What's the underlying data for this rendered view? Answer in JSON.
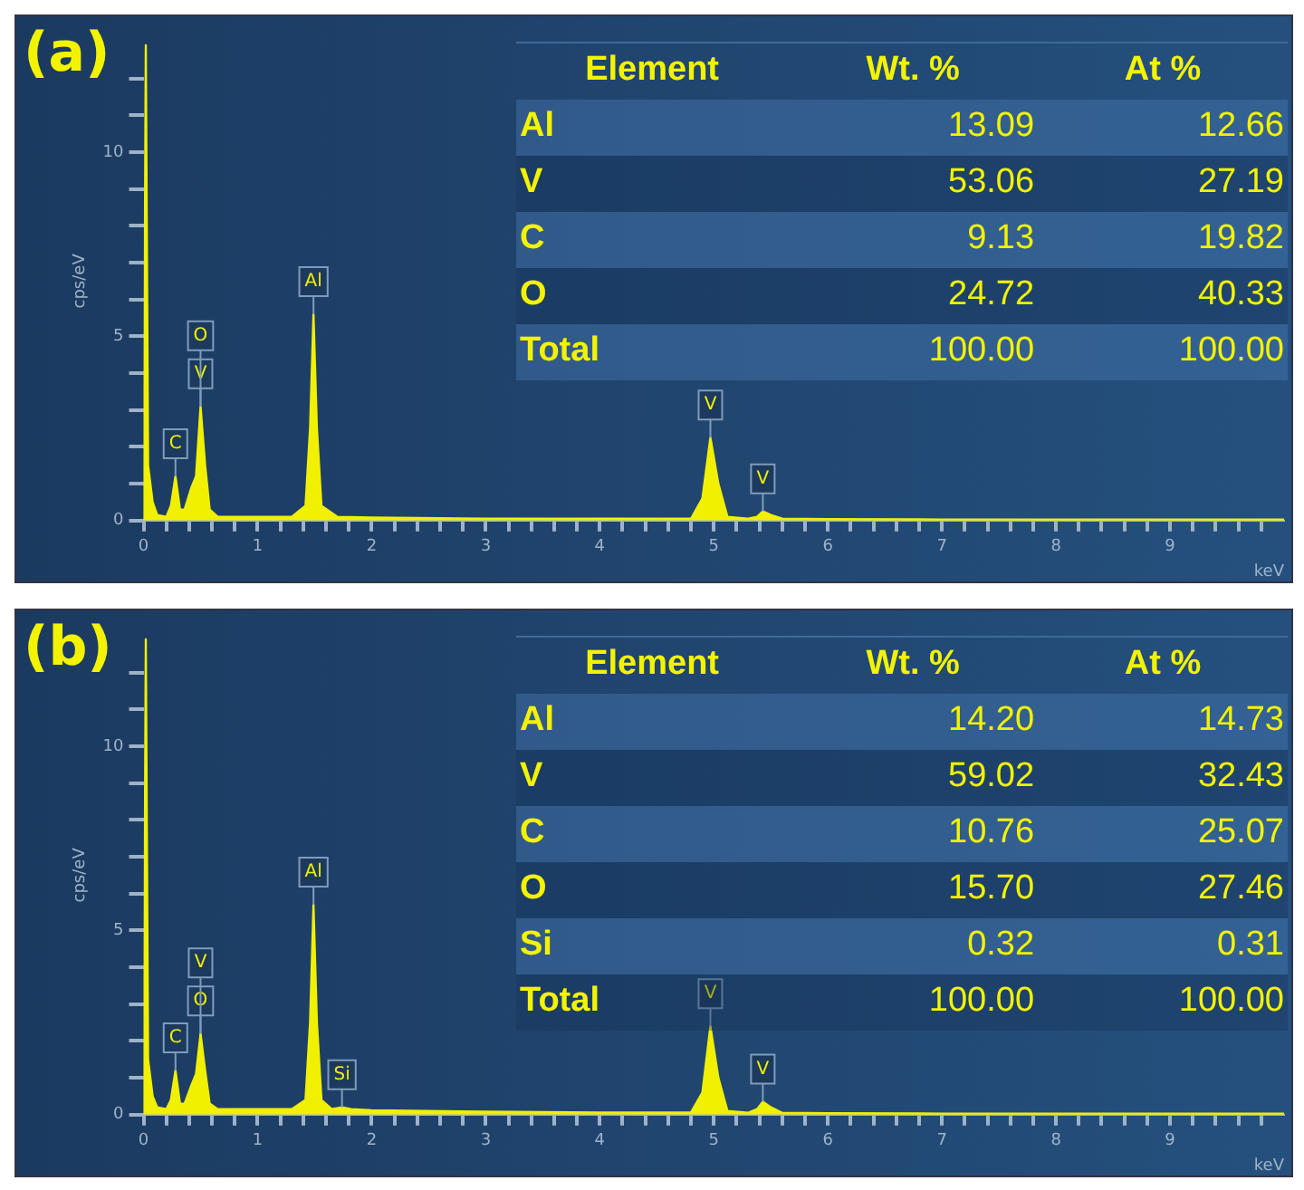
{
  "chart_data": [
    {
      "type": "area",
      "xlabel": "keV",
      "ylabel": "cps/eV",
      "xlim": [
        0,
        10
      ],
      "ylim": [
        0,
        13
      ],
      "xticks": [
        0,
        {
          "value": 0.2,
          "label": null
        },
        {
          "value": 0.4,
          "label": null
        },
        {
          "value": 0.6,
          "label": null
        },
        {
          "value": 0.8,
          "label": null
        },
        1,
        {
          "value": 1.2,
          "label": null
        },
        {
          "value": 1.4,
          "label": null
        },
        {
          "value": 1.6,
          "label": null
        },
        {
          "value": 1.8,
          "label": null
        },
        2,
        {
          "value": 2.2,
          "label": null
        },
        {
          "value": 2.4,
          "label": null
        },
        {
          "value": 2.6,
          "label": null
        },
        {
          "value": 2.8,
          "label": null
        },
        3,
        {
          "value": 3.2,
          "label": null
        },
        {
          "value": 3.4,
          "label": null
        },
        {
          "value": 3.6,
          "label": null
        },
        {
          "value": 3.8,
          "label": null
        },
        4,
        {
          "value": 4.2,
          "label": null
        },
        {
          "value": 4.4,
          "label": null
        },
        {
          "value": 4.6,
          "label": null
        },
        {
          "value": 4.8,
          "label": null
        },
        5,
        {
          "value": 5.2,
          "label": null
        },
        {
          "value": 5.4,
          "label": null
        },
        {
          "value": 5.6,
          "label": null
        },
        {
          "value": 5.8,
          "label": null
        },
        6,
        {
          "value": 6.2,
          "label": null
        },
        {
          "value": 6.4,
          "label": null
        },
        {
          "value": 6.6,
          "label": null
        },
        {
          "value": 6.8,
          "label": null
        },
        7,
        {
          "value": 7.2,
          "label": null
        },
        {
          "value": 7.4,
          "label": null
        },
        {
          "value": 7.6,
          "label": null
        },
        {
          "value": 7.8,
          "label": null
        },
        8,
        {
          "value": 8.2,
          "label": null
        },
        {
          "value": 8.4,
          "label": null
        },
        {
          "value": 8.6,
          "label": null
        },
        {
          "value": 8.8,
          "label": null
        },
        9,
        {
          "value": 9.2,
          "label": null
        },
        {
          "value": 9.4,
          "label": null
        },
        {
          "value": 9.6,
          "label": null
        },
        {
          "value": 9.8,
          "label": null
        }
      ],
      "yticks": [
        0,
        {
          "value": 1,
          "label": null
        },
        {
          "value": 2,
          "label": null
        },
        {
          "value": 3,
          "label": null
        },
        {
          "value": 4,
          "label": null
        },
        5,
        {
          "value": 6,
          "label": null
        },
        {
          "value": 7,
          "label": null
        },
        {
          "value": 8,
          "label": null
        },
        {
          "value": 9,
          "label": null
        },
        10,
        {
          "value": 11,
          "label": null
        },
        {
          "value": 12,
          "label": null
        }
      ],
      "grid": false,
      "legend": false,
      "series": [
        {
          "color": "#f0f000",
          "x": [
            0,
            0.02,
            0.04,
            0.08,
            0.12,
            0.2,
            0.24,
            0.28,
            0.32,
            0.36,
            0.42,
            0.46,
            0.5,
            0.54,
            0.58,
            0.65,
            0.8,
            1.0,
            1.3,
            1.42,
            1.46,
            1.49,
            1.52,
            1.56,
            1.7,
            2.0,
            3.0,
            4.0,
            4.8,
            4.9,
            4.97,
            5.04,
            5.12,
            5.3,
            5.38,
            5.43,
            5.5,
            5.6,
            6.0,
            7.0,
            8.0,
            9.0,
            10.0
          ],
          "values": [
            0,
            12.9,
            1.5,
            0.5,
            0.15,
            0.1,
            0.4,
            1.2,
            0.3,
            0.3,
            0.9,
            1.2,
            3.1,
            1.5,
            0.3,
            0.1,
            0.1,
            0.1,
            0.1,
            0.4,
            2.5,
            5.6,
            2.5,
            0.4,
            0.1,
            0.08,
            0.05,
            0.05,
            0.05,
            0.6,
            2.25,
            1.0,
            0.1,
            0.05,
            0.1,
            0.25,
            0.15,
            0.05,
            0.04,
            0.03,
            0.03,
            0.03,
            0.03
          ]
        }
      ],
      "annotations": [
        "(a)",
        "Element",
        "Wt. %",
        "At %",
        "Al",
        "13.09",
        "12.66",
        "V",
        "53.06",
        "27.19",
        "C",
        "9.13",
        "19.82",
        "O",
        "24.72",
        "40.33",
        "Total",
        "100.00",
        "100.00",
        {
          "text": "C",
          "x": 0.28,
          "y": 1.2
        },
        {
          "text": "V",
          "x": 0.5,
          "y": 3.1
        },
        {
          "text": "O",
          "x": 0.5,
          "y": 3.1
        },
        {
          "text": "Al",
          "x": 1.49,
          "y": 5.6
        },
        {
          "text": "V",
          "x": 4.97,
          "y": 2.25
        },
        {
          "text": "V",
          "x": 5.43,
          "y": 0.25
        }
      ]
    },
    {
      "type": "area",
      "xlabel": "keV",
      "ylabel": "cps/eV",
      "xlim": [
        0,
        10
      ],
      "ylim": [
        0,
        13
      ],
      "xticks": [
        0,
        {
          "value": 0.2,
          "label": null
        },
        {
          "value": 0.4,
          "label": null
        },
        {
          "value": 0.6,
          "label": null
        },
        {
          "value": 0.8,
          "label": null
        },
        1,
        {
          "value": 1.2,
          "label": null
        },
        {
          "value": 1.4,
          "label": null
        },
        {
          "value": 1.6,
          "label": null
        },
        {
          "value": 1.8,
          "label": null
        },
        2,
        {
          "value": 2.2,
          "label": null
        },
        {
          "value": 2.4,
          "label": null
        },
        {
          "value": 2.6,
          "label": null
        },
        {
          "value": 2.8,
          "label": null
        },
        3,
        {
          "value": 3.2,
          "label": null
        },
        {
          "value": 3.4,
          "label": null
        },
        {
          "value": 3.6,
          "label": null
        },
        {
          "value": 3.8,
          "label": null
        },
        4,
        {
          "value": 4.2,
          "label": null
        },
        {
          "value": 4.4,
          "label": null
        },
        {
          "value": 4.6,
          "label": null
        },
        {
          "value": 4.8,
          "label": null
        },
        5,
        {
          "value": 5.2,
          "label": null
        },
        {
          "value": 5.4,
          "label": null
        },
        {
          "value": 5.6,
          "label": null
        },
        {
          "value": 5.8,
          "label": null
        },
        6,
        {
          "value": 6.2,
          "label": null
        },
        {
          "value": 6.4,
          "label": null
        },
        {
          "value": 6.6,
          "label": null
        },
        {
          "value": 6.8,
          "label": null
        },
        7,
        {
          "value": 7.2,
          "label": null
        },
        {
          "value": 7.4,
          "label": null
        },
        {
          "value": 7.6,
          "label": null
        },
        {
          "value": 7.8,
          "label": null
        },
        8,
        {
          "value": 8.2,
          "label": null
        },
        {
          "value": 8.4,
          "label": null
        },
        {
          "value": 8.6,
          "label": null
        },
        {
          "value": 8.8,
          "label": null
        },
        9,
        {
          "value": 9.2,
          "label": null
        },
        {
          "value": 9.4,
          "label": null
        },
        {
          "value": 9.6,
          "label": null
        },
        {
          "value": 9.8,
          "label": null
        }
      ],
      "yticks": [
        0,
        {
          "value": 1,
          "label": null
        },
        {
          "value": 2,
          "label": null
        },
        {
          "value": 3,
          "label": null
        },
        {
          "value": 4,
          "label": null
        },
        5,
        {
          "value": 6,
          "label": null
        },
        {
          "value": 7,
          "label": null
        },
        {
          "value": 8,
          "label": null
        },
        {
          "value": 9,
          "label": null
        },
        10,
        {
          "value": 11,
          "label": null
        },
        {
          "value": 12,
          "label": null
        }
      ],
      "grid": false,
      "legend": false,
      "series": [
        {
          "color": "#f0f000",
          "x": [
            0,
            0.02,
            0.04,
            0.08,
            0.12,
            0.2,
            0.24,
            0.28,
            0.32,
            0.36,
            0.42,
            0.46,
            0.5,
            0.54,
            0.58,
            0.65,
            0.8,
            1.0,
            1.3,
            1.42,
            1.46,
            1.49,
            1.52,
            1.56,
            1.65,
            1.74,
            1.82,
            2.0,
            3.0,
            4.0,
            4.8,
            4.9,
            4.97,
            5.04,
            5.12,
            5.3,
            5.38,
            5.43,
            5.5,
            5.6,
            6.0,
            7.0,
            8.0,
            9.0,
            10.0
          ],
          "values": [
            0,
            12.9,
            1.5,
            0.5,
            0.2,
            0.15,
            0.4,
            1.2,
            0.3,
            0.3,
            0.8,
            1.1,
            2.2,
            1.2,
            0.3,
            0.15,
            0.15,
            0.15,
            0.15,
            0.4,
            2.5,
            5.7,
            2.5,
            0.4,
            0.15,
            0.2,
            0.15,
            0.12,
            0.08,
            0.06,
            0.06,
            0.6,
            2.4,
            1.0,
            0.1,
            0.05,
            0.15,
            0.35,
            0.2,
            0.05,
            0.04,
            0.03,
            0.03,
            0.03,
            0.03
          ]
        }
      ],
      "annotations": [
        "(b)",
        "Element",
        "Wt. %",
        "At %",
        "Al",
        "14.20",
        "14.73",
        "V",
        "59.02",
        "32.43",
        "C",
        "10.76",
        "25.07",
        "O",
        "15.70",
        "27.46",
        "Si",
        "0.32",
        "0.31",
        "Total",
        "100.00",
        "100.00",
        {
          "text": "C",
          "x": 0.28,
          "y": 1.2
        },
        {
          "text": "O",
          "x": 0.5,
          "y": 2.2
        },
        {
          "text": "V",
          "x": 0.5,
          "y": 2.2
        },
        {
          "text": "Al",
          "x": 1.49,
          "y": 5.7
        },
        {
          "text": "Si",
          "x": 1.74,
          "y": 0.2
        },
        {
          "text": "V",
          "x": 4.97,
          "y": 2.4
        },
        {
          "text": "V",
          "x": 5.43,
          "y": 0.35
        }
      ]
    }
  ]
}
